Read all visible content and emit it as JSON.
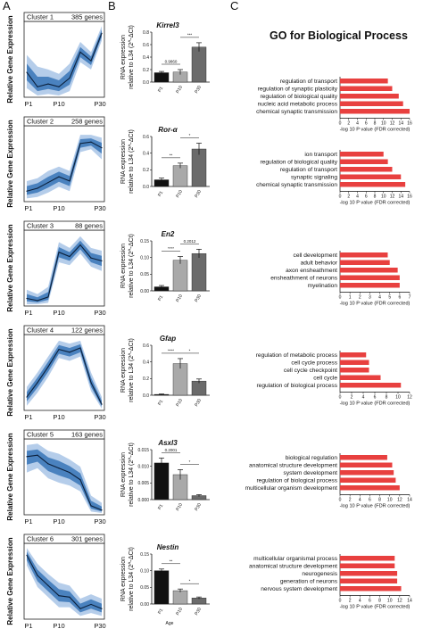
{
  "panel_labels": [
    "A",
    "B",
    "C"
  ],
  "go_title": "GO for Biological Process",
  "chart_data": [
    {
      "type": "line",
      "panel": "A",
      "title": "Cluster 1",
      "subtitle": "385 genes",
      "ylabel": "Relative Gene Expression",
      "xticks": [
        "P1",
        "P10",
        "P30"
      ],
      "x": [
        1,
        2,
        3,
        4,
        5,
        6,
        7,
        8
      ],
      "values": [
        0.32,
        0.12,
        0.16,
        0.12,
        0.24,
        0.6,
        0.48,
        0.86
      ],
      "band_low": [
        0.1,
        0.0,
        0.02,
        0.0,
        0.06,
        0.46,
        0.36,
        0.76
      ],
      "band_high": [
        0.56,
        0.4,
        0.36,
        0.3,
        0.44,
        0.74,
        0.6,
        0.96
      ]
    },
    {
      "type": "line",
      "panel": "A",
      "title": "Cluster 2",
      "subtitle": "258 genes",
      "ylabel": "Relative Gene Expression",
      "xticks": [
        "P1",
        "P10",
        "P30"
      ],
      "x": [
        1,
        2,
        3,
        4,
        5,
        6,
        7,
        8
      ],
      "values": [
        0.12,
        0.16,
        0.24,
        0.32,
        0.26,
        0.78,
        0.8,
        0.72
      ],
      "band_low": [
        0.02,
        0.04,
        0.1,
        0.18,
        0.12,
        0.66,
        0.7,
        0.56
      ],
      "band_high": [
        0.26,
        0.3,
        0.4,
        0.46,
        0.4,
        0.9,
        0.9,
        0.86
      ]
    },
    {
      "type": "line",
      "panel": "A",
      "title": "Cluster 3",
      "subtitle": "88 genes",
      "ylabel": "Relative Gene Expression",
      "xticks": [
        "P1",
        "P10",
        "P30"
      ],
      "x": [
        1,
        2,
        3,
        4,
        5,
        6,
        7,
        8
      ],
      "values": [
        0.08,
        0.05,
        0.1,
        0.72,
        0.66,
        0.82,
        0.64,
        0.6
      ],
      "band_low": [
        0.0,
        0.0,
        0.02,
        0.58,
        0.54,
        0.7,
        0.52,
        0.46
      ],
      "band_high": [
        0.2,
        0.14,
        0.24,
        0.86,
        0.78,
        0.94,
        0.78,
        0.74
      ]
    },
    {
      "type": "line",
      "panel": "A",
      "title": "Cluster 4",
      "subtitle": "122 genes",
      "ylabel": "Relative Gene Expression",
      "xticks": [
        "P1",
        "P10",
        "P30"
      ],
      "x": [
        1,
        2,
        3,
        4,
        5,
        6,
        7,
        8
      ],
      "values": [
        0.16,
        0.36,
        0.58,
        0.82,
        0.78,
        0.84,
        0.36,
        0.06
      ],
      "band_low": [
        0.04,
        0.22,
        0.44,
        0.7,
        0.66,
        0.72,
        0.24,
        0.0
      ],
      "band_high": [
        0.3,
        0.5,
        0.72,
        0.94,
        0.9,
        0.94,
        0.5,
        0.16
      ]
    },
    {
      "type": "line",
      "panel": "A",
      "title": "Cluster 5",
      "subtitle": "163 genes",
      "ylabel": "Relative Gene Expression",
      "xticks": [
        "P1",
        "P10",
        "P30"
      ],
      "x": [
        1,
        2,
        3,
        4,
        5,
        6,
        7,
        8
      ],
      "values": [
        0.78,
        0.8,
        0.68,
        0.62,
        0.56,
        0.46,
        0.1,
        0.04
      ],
      "band_low": [
        0.56,
        0.62,
        0.48,
        0.42,
        0.38,
        0.3,
        0.02,
        0.0
      ],
      "band_high": [
        0.94,
        0.96,
        0.86,
        0.82,
        0.74,
        0.64,
        0.24,
        0.14
      ]
    },
    {
      "type": "line",
      "panel": "A",
      "title": "Cluster 6",
      "subtitle": "301 genes",
      "ylabel": "Relative Gene Expression",
      "xticks": [
        "P1",
        "P10",
        "P30"
      ],
      "x": [
        1,
        2,
        3,
        4,
        5,
        6,
        7,
        8
      ],
      "values": [
        0.86,
        0.58,
        0.44,
        0.3,
        0.28,
        0.12,
        0.18,
        0.12
      ],
      "band_low": [
        0.72,
        0.42,
        0.28,
        0.14,
        0.14,
        0.02,
        0.06,
        0.02
      ],
      "band_high": [
        0.96,
        0.74,
        0.6,
        0.48,
        0.44,
        0.26,
        0.32,
        0.26
      ]
    },
    {
      "type": "bar",
      "panel": "B",
      "title": "Kirrel3",
      "ylabel": "RNA expression relative to L34 (2^-ΔCt)",
      "categories": [
        "P1",
        "P10",
        "P30"
      ],
      "values": [
        0.15,
        0.16,
        0.56
      ],
      "errors": [
        0.02,
        0.04,
        0.07
      ],
      "ylim": [
        0,
        0.8
      ],
      "yticks": [
        "0.0",
        "0.2",
        "0.4",
        "0.6",
        "0.8"
      ],
      "annotations": [
        {
          "between": [
            "P1",
            "P10"
          ],
          "text": "0.9860"
        },
        {
          "between": [
            "P10",
            "P30"
          ],
          "text": "***"
        }
      ]
    },
    {
      "type": "bar",
      "panel": "B",
      "title": "Ror-α",
      "ylabel": "RNA expression relative to L34 (2^-ΔCt)",
      "categories": [
        "P1",
        "P10",
        "P30"
      ],
      "values": [
        0.08,
        0.25,
        0.45
      ],
      "errors": [
        0.02,
        0.03,
        0.07
      ],
      "ylim": [
        0,
        0.6
      ],
      "yticks": [
        "0.0",
        "0.2",
        "0.4",
        "0.6"
      ],
      "annotations": [
        {
          "between": [
            "P1",
            "P10"
          ],
          "text": "**"
        },
        {
          "between": [
            "P10",
            "P30"
          ],
          "text": "*"
        }
      ]
    },
    {
      "type": "bar",
      "panel": "B",
      "title": "En2",
      "ylabel": "RNA expression relative to L34 (2^-ΔCt)",
      "categories": [
        "P1",
        "P10",
        "P30"
      ],
      "values": [
        0.012,
        0.092,
        0.112
      ],
      "errors": [
        0.004,
        0.011,
        0.013
      ],
      "ylim": [
        0,
        0.15
      ],
      "yticks": [
        "0.00",
        "0.05",
        "0.10",
        "0.15"
      ],
      "annotations": [
        {
          "between": [
            "P1",
            "P10"
          ],
          "text": "****"
        },
        {
          "between": [
            "P10",
            "P30"
          ],
          "text": "0.2012"
        }
      ]
    },
    {
      "type": "bar",
      "panel": "B",
      "title": "Gfap",
      "ylabel": "RNA expression relative to L34 (2^-ΔCt)",
      "categories": [
        "P1",
        "P10",
        "P30"
      ],
      "values": [
        0.01,
        0.38,
        0.17
      ],
      "errors": [
        0.005,
        0.06,
        0.025
      ],
      "ylim": [
        0,
        0.6
      ],
      "yticks": [
        "0.0",
        "0.2",
        "0.4",
        "0.6"
      ],
      "annotations": [
        {
          "between": [
            "P1",
            "P10"
          ],
          "text": "****"
        },
        {
          "between": [
            "P10",
            "P30"
          ],
          "text": "*"
        }
      ]
    },
    {
      "type": "bar",
      "panel": "B",
      "title": "Asxl3",
      "ylabel": "RNA expression relative to L34 (2^-ΔCt)",
      "categories": [
        "P1",
        "P10",
        "P30"
      ],
      "values": [
        0.011,
        0.0075,
        0.0012
      ],
      "errors": [
        0.0015,
        0.0015,
        0.0003
      ],
      "ylim": [
        0,
        0.015
      ],
      "yticks": [
        "0.000",
        "0.005",
        "0.010",
        "0.015"
      ],
      "annotations": [
        {
          "between": [
            "P1",
            "P10"
          ],
          "text": "0.2001"
        },
        {
          "between": [
            "P10",
            "P30"
          ],
          "text": "*"
        }
      ]
    },
    {
      "type": "bar",
      "panel": "B",
      "title": "Nestin",
      "ylabel": "RNA expression relative to L34 (2^-ΔCt)",
      "xlabel": "Age",
      "categories": [
        "P1",
        "P10",
        "P30"
      ],
      "values": [
        0.1,
        0.04,
        0.018
      ],
      "errors": [
        0.005,
        0.005,
        0.003
      ],
      "ylim": [
        0,
        0.15
      ],
      "yticks": [
        "0.00",
        "0.05",
        "0.10",
        "0.15"
      ],
      "annotations": [
        {
          "between": [
            "P1",
            "P10"
          ],
          "text": "**"
        },
        {
          "between": [
            "P10",
            "P30"
          ],
          "text": "*"
        }
      ]
    },
    {
      "type": "bar",
      "panel": "C",
      "orientation": "horizontal",
      "xlabel": "-log 10 P value (FDR corrected)",
      "categories": [
        "regulation of transport",
        "regulation of synaptic plasticity",
        "regulation of biological quality",
        "nucleic acid metabolic process",
        "chemical synaptic transmission"
      ],
      "values": [
        11,
        12,
        13.5,
        14.5,
        16
      ],
      "xticks": [
        "0",
        "2",
        "4",
        "6",
        "8",
        "10",
        "12",
        "14",
        "16"
      ],
      "xlim": [
        0,
        16
      ]
    },
    {
      "type": "bar",
      "panel": "C",
      "orientation": "horizontal",
      "xlabel": "-log 10 P value (FDR corrected)",
      "categories": [
        "ion transport",
        "regulation of biological quality",
        "regulation of transport",
        "synaptic signaling",
        "chemical synaptic transmission"
      ],
      "values": [
        10,
        11,
        12,
        14,
        15
      ],
      "xticks": [
        "0",
        "2",
        "4",
        "6",
        "8",
        "10",
        "12",
        "14",
        "16"
      ],
      "xlim": [
        0,
        16
      ]
    },
    {
      "type": "bar",
      "panel": "C",
      "orientation": "horizontal",
      "xlabel": "-log 10 P value (FDR corrected)",
      "categories": [
        "cell development",
        "adult behavior",
        "axon ensheathment",
        "ensheathment of neurons",
        "myelination"
      ],
      "values": [
        4.8,
        5.0,
        5.8,
        6.0,
        6.0
      ],
      "xticks": [
        "0",
        "1",
        "2",
        "3",
        "4",
        "5",
        "6",
        "7"
      ],
      "xlim": [
        0,
        7
      ]
    },
    {
      "type": "bar",
      "panel": "C",
      "orientation": "horizontal",
      "xlabel": "-log 10 P value (FDR corrected)",
      "categories": [
        "regulation of metabolic process",
        "cell cycle process",
        "cell cycle checkpoint",
        "cell cycle",
        "regulation of biological process"
      ],
      "values": [
        4.5,
        5.0,
        5.0,
        7.0,
        10.5
      ],
      "xticks": [
        "0",
        "2",
        "4",
        "6",
        "8",
        "10",
        "12"
      ],
      "xlim": [
        0,
        12
      ]
    },
    {
      "type": "bar",
      "panel": "C",
      "orientation": "horizontal",
      "xlabel": "-log 10 P value (FDR corrected)",
      "categories": [
        "biological regulation",
        "anatomical structure development",
        "system development",
        "regulation of biological process",
        "multicellular organism development"
      ],
      "values": [
        9.5,
        10.5,
        10.8,
        11.2,
        12.0
      ],
      "xticks": [
        "0",
        "2",
        "4",
        "6",
        "8",
        "10",
        "12",
        "14"
      ],
      "xlim": [
        0,
        14
      ]
    },
    {
      "type": "bar",
      "panel": "C",
      "orientation": "horizontal",
      "xlabel": "-log 10 P value (FDR corrected)",
      "categories": [
        "multicellular organismal process",
        "anatomical structure development",
        "neurogenesis",
        "generation of neurons",
        "nervous system development"
      ],
      "values": [
        11,
        11,
        11.5,
        11.5,
        12.3
      ],
      "xticks": [
        "0",
        "2",
        "4",
        "6",
        "8",
        "10",
        "12",
        "14"
      ],
      "xlim": [
        0,
        14
      ]
    }
  ]
}
